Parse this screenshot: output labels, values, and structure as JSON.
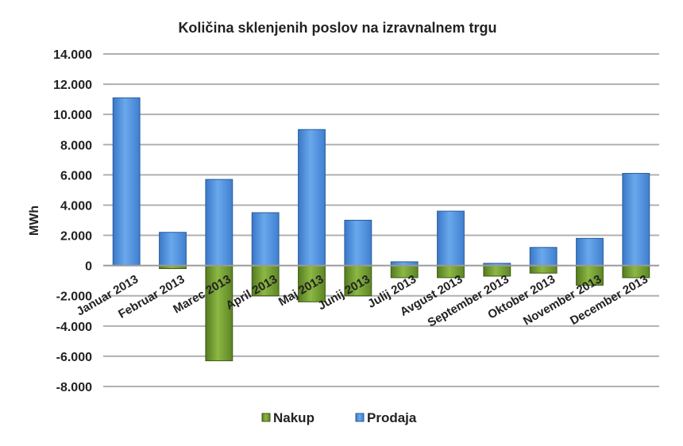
{
  "chart_data": {
    "type": "bar",
    "title": "Količina sklenjenih poslov na izravnalnem trgu",
    "ylabel": "MWh",
    "xlabel": "",
    "ylim": [
      -8000,
      14000
    ],
    "yticks": [
      14000,
      12000,
      10000,
      8000,
      6000,
      4000,
      2000,
      0,
      -2000,
      -4000,
      -6000,
      -8000
    ],
    "ytick_labels": [
      "14.000",
      "12.000",
      "10.000",
      "8.000",
      "6.000",
      "4.000",
      "2.000",
      "0",
      "-2.000",
      "-4.000",
      "-6.000",
      "-8.000"
    ],
    "grid": true,
    "legend_position": "bottom",
    "stacked": true,
    "categories": [
      "Januar 2013",
      "Februar 2013",
      "Marec 2013",
      "April 2013",
      "Maj 2013",
      "Junij 2013",
      "Julij 2013",
      "Avgust 2013",
      "September 2013",
      "Oktober 2013",
      "November 2013",
      "December 2013"
    ],
    "series": [
      {
        "name": "Nakup",
        "color": "#6e9a2c",
        "values": [
          0,
          -200,
          -6300,
          -2000,
          -2400,
          -2000,
          -800,
          -800,
          -700,
          -500,
          -1300,
          -800
        ]
      },
      {
        "name": "Prodaja",
        "color": "#4f8fd8",
        "values": [
          11100,
          2200,
          5700,
          3500,
          9000,
          3000,
          250,
          3600,
          150,
          1200,
          1800,
          6100
        ]
      }
    ]
  }
}
